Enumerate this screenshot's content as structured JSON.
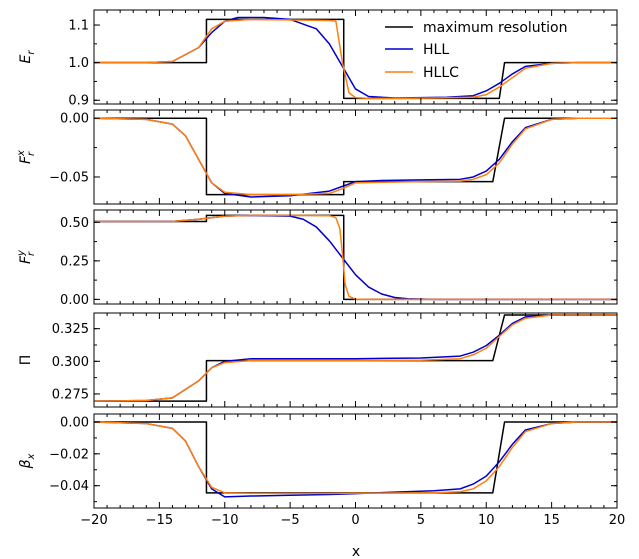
{
  "chart_data": {
    "type": "line",
    "xlabel": "x",
    "xlim": [
      -20,
      20
    ],
    "xticks": [
      -20,
      -15,
      -10,
      -5,
      0,
      5,
      10,
      15,
      20
    ],
    "xtick_labels": [
      "−20",
      "−15",
      "−10",
      "−5",
      "0",
      "5",
      "10",
      "15",
      "20"
    ],
    "legend": {
      "placement": "top-right",
      "entries": [
        {
          "name": "maximum resolution",
          "color": "#000000"
        },
        {
          "name": "HLL",
          "color": "#0000cc"
        },
        {
          "name": "HLLC",
          "color": "#ff7f0e"
        }
      ]
    },
    "panels": [
      {
        "ylabel_base": "E",
        "ylabel_sub": "r",
        "ylabel_sup": "",
        "ylim": [
          0.89,
          1.14
        ],
        "yticks": [
          0.9,
          1.0,
          1.1
        ],
        "ytick_labels": [
          "0.9",
          "1.0",
          "1.1"
        ],
        "series": [
          {
            "name": "maximum resolution",
            "x": [
              -20,
              -11.4,
              -11.4,
              -0.9,
              -0.9,
              11.0,
              11.4,
              20
            ],
            "y": [
              1.0,
              1.0,
              1.115,
              1.115,
              0.905,
              0.905,
              1.0,
              1.0
            ]
          },
          {
            "name": "HLL",
            "x": [
              -20,
              -16,
              -14,
              -12,
              -11,
              -10,
              -9,
              -7,
              -5,
              -3,
              -2,
              -1,
              0,
              1,
              3,
              5,
              7,
              9,
              10,
              11,
              12,
              13,
              15,
              17,
              20
            ],
            "y": [
              1.0,
              1.0,
              1.003,
              1.04,
              1.08,
              1.11,
              1.12,
              1.12,
              1.115,
              1.09,
              1.05,
              0.99,
              0.93,
              0.91,
              0.906,
              0.907,
              0.908,
              0.912,
              0.925,
              0.945,
              0.97,
              0.99,
              0.998,
              1.0,
              1.0
            ]
          },
          {
            "name": "HLLC",
            "x": [
              -20,
              -16,
              -14,
              -12,
              -11,
              -10,
              -8,
              -4,
              -2,
              -1.5,
              -1,
              -0.5,
              0,
              1,
              3,
              6,
              9,
              10,
              11,
              12,
              13,
              15,
              17,
              20
            ],
            "y": [
              1.0,
              1.0,
              1.003,
              1.04,
              1.09,
              1.11,
              1.115,
              1.113,
              1.112,
              1.11,
              1.0,
              0.92,
              0.907,
              0.905,
              0.905,
              0.906,
              0.908,
              0.915,
              0.935,
              0.96,
              0.985,
              0.998,
              1.0,
              1.0
            ]
          }
        ]
      },
      {
        "ylabel_base": "F",
        "ylabel_sub": "r",
        "ylabel_sup": "x",
        "ylim": [
          -0.073,
          0.007
        ],
        "yticks": [
          0.0,
          -0.05
        ],
        "ytick_labels": [
          "0.00",
          "−0.05"
        ],
        "series": [
          {
            "name": "maximum resolution",
            "x": [
              -20,
              -11.4,
              -11.4,
              -0.9,
              -0.9,
              10.5,
              11.4,
              20
            ],
            "y": [
              0.0,
              0.0,
              -0.065,
              -0.065,
              -0.054,
              -0.054,
              0.0,
              0.0
            ]
          },
          {
            "name": "HLL",
            "x": [
              -20,
              -16,
              -14,
              -13,
              -12,
              -11,
              -10,
              -8,
              -5,
              -2,
              -1,
              0,
              2,
              5,
              8,
              9,
              10,
              11,
              12,
              13,
              15,
              17,
              20
            ],
            "y": [
              0.0,
              -0.001,
              -0.005,
              -0.015,
              -0.035,
              -0.055,
              -0.064,
              -0.067,
              -0.066,
              -0.062,
              -0.058,
              -0.054,
              -0.053,
              -0.0525,
              -0.052,
              -0.05,
              -0.045,
              -0.035,
              -0.02,
              -0.008,
              -0.001,
              0.0,
              0.0
            ]
          },
          {
            "name": "HLLC",
            "x": [
              -20,
              -16,
              -14,
              -13,
              -12,
              -11,
              -10,
              -8,
              -5,
              -2,
              -1,
              0,
              2,
              5,
              8,
              9,
              10,
              11,
              12,
              13,
              15,
              17,
              20
            ],
            "y": [
              0.0,
              -0.001,
              -0.005,
              -0.015,
              -0.035,
              -0.055,
              -0.063,
              -0.065,
              -0.065,
              -0.064,
              -0.06,
              -0.055,
              -0.0545,
              -0.054,
              -0.0535,
              -0.052,
              -0.048,
              -0.038,
              -0.022,
              -0.009,
              -0.001,
              0.0,
              0.0
            ]
          }
        ]
      },
      {
        "ylabel_base": "F",
        "ylabel_sub": "r",
        "ylabel_sup": "y",
        "ylim": [
          -0.03,
          0.58
        ],
        "yticks": [
          0.0,
          0.25,
          0.5
        ],
        "ytick_labels": [
          "0.00",
          "0.25",
          "0.50"
        ],
        "series": [
          {
            "name": "maximum resolution",
            "x": [
              -20,
              -11.4,
              -11.4,
              -0.9,
              -0.9,
              20
            ],
            "y": [
              0.505,
              0.505,
              0.545,
              0.545,
              0.0,
              0.0
            ]
          },
          {
            "name": "HLL",
            "x": [
              -20,
              -14,
              -12,
              -10,
              -8,
              -5,
              -4,
              -3,
              -2,
              -1,
              0,
              1,
              2,
              3,
              4,
              6,
              20
            ],
            "y": [
              0.505,
              0.506,
              0.52,
              0.54,
              0.545,
              0.54,
              0.52,
              0.47,
              0.38,
              0.27,
              0.16,
              0.08,
              0.035,
              0.012,
              0.004,
              0.0,
              0.0
            ]
          },
          {
            "name": "HLLC",
            "x": [
              -20,
              -14,
              -12,
              -10,
              -8,
              -4,
              -2,
              -1.5,
              -1.2,
              -1,
              -0.8,
              -0.5,
              0,
              1,
              20
            ],
            "y": [
              0.505,
              0.506,
              0.52,
              0.54,
              0.545,
              0.545,
              0.543,
              0.53,
              0.46,
              0.3,
              0.1,
              0.02,
              0.002,
              0.0,
              0.0
            ]
          }
        ]
      },
      {
        "ylabel_base": "Π",
        "ylabel_sub": "",
        "ylabel_sup": "",
        "ylim": [
          0.265,
          0.337
        ],
        "yticks": [
          0.275,
          0.3,
          0.325
        ],
        "ytick_labels": [
          "0.275",
          "0.300",
          "0.325"
        ],
        "series": [
          {
            "name": "maximum resolution",
            "x": [
              -20,
              -11.4,
              -11.4,
              10.5,
              11.4,
              20
            ],
            "y": [
              0.2695,
              0.2695,
              0.3005,
              0.3005,
              0.3355,
              0.3355
            ]
          },
          {
            "name": "HLL",
            "x": [
              -20,
              -16,
              -14,
              -12,
              -11,
              -10,
              -8,
              -5,
              0,
              5,
              8,
              9,
              10,
              11,
              12,
              13,
              15,
              17,
              20
            ],
            "y": [
              0.2695,
              0.27,
              0.272,
              0.285,
              0.295,
              0.3,
              0.302,
              0.302,
              0.302,
              0.3025,
              0.304,
              0.307,
              0.312,
              0.32,
              0.329,
              0.334,
              0.3355,
              0.3355,
              0.3355
            ]
          },
          {
            "name": "HLLC",
            "x": [
              -20,
              -16,
              -14,
              -12,
              -11,
              -10,
              -8,
              -5,
              0,
              5,
              8,
              9,
              10,
              11,
              12,
              13,
              15,
              17,
              20
            ],
            "y": [
              0.2695,
              0.27,
              0.272,
              0.285,
              0.295,
              0.299,
              0.3005,
              0.3005,
              0.3005,
              0.3008,
              0.302,
              0.305,
              0.31,
              0.319,
              0.328,
              0.333,
              0.3355,
              0.3355,
              0.3355
            ]
          }
        ]
      },
      {
        "ylabel_base": "β",
        "ylabel_sub": "x",
        "ylabel_sup": "",
        "ylim": [
          -0.054,
          0.005
        ],
        "yticks": [
          0.0,
          -0.02,
          -0.04
        ],
        "ytick_labels": [
          "0.00",
          "−0.02",
          "−0.04"
        ],
        "series": [
          {
            "name": "maximum resolution",
            "x": [
              -20,
              -11.4,
              -11.4,
              10.5,
              11.4,
              20
            ],
            "y": [
              0.0,
              0.0,
              -0.0445,
              -0.0445,
              0.0,
              0.0
            ]
          },
          {
            "name": "HLL",
            "x": [
              -20,
              -16,
              -14,
              -13,
              -12,
              -11,
              -10,
              -8,
              -5,
              -2,
              0,
              3,
              6,
              8,
              9,
              10,
              11,
              12,
              13,
              15,
              17,
              20
            ],
            "y": [
              0.0,
              -0.001,
              -0.004,
              -0.012,
              -0.028,
              -0.042,
              -0.047,
              -0.0465,
              -0.046,
              -0.0455,
              -0.045,
              -0.044,
              -0.0432,
              -0.042,
              -0.039,
              -0.034,
              -0.025,
              -0.014,
              -0.005,
              -0.001,
              0.0,
              0.0
            ]
          },
          {
            "name": "HLLC",
            "x": [
              -20,
              -16,
              -14,
              -13,
              -12,
              -11,
              -10,
              -8,
              -5,
              -2,
              0,
              3,
              6,
              8,
              9,
              10,
              11,
              12,
              13,
              15,
              17,
              20
            ],
            "y": [
              0.0,
              -0.001,
              -0.004,
              -0.012,
              -0.028,
              -0.041,
              -0.0445,
              -0.0448,
              -0.0448,
              -0.0448,
              -0.0447,
              -0.0446,
              -0.0444,
              -0.0438,
              -0.042,
              -0.037,
              -0.028,
              -0.016,
              -0.006,
              -0.001,
              0.0,
              0.0
            ]
          }
        ]
      }
    ]
  }
}
